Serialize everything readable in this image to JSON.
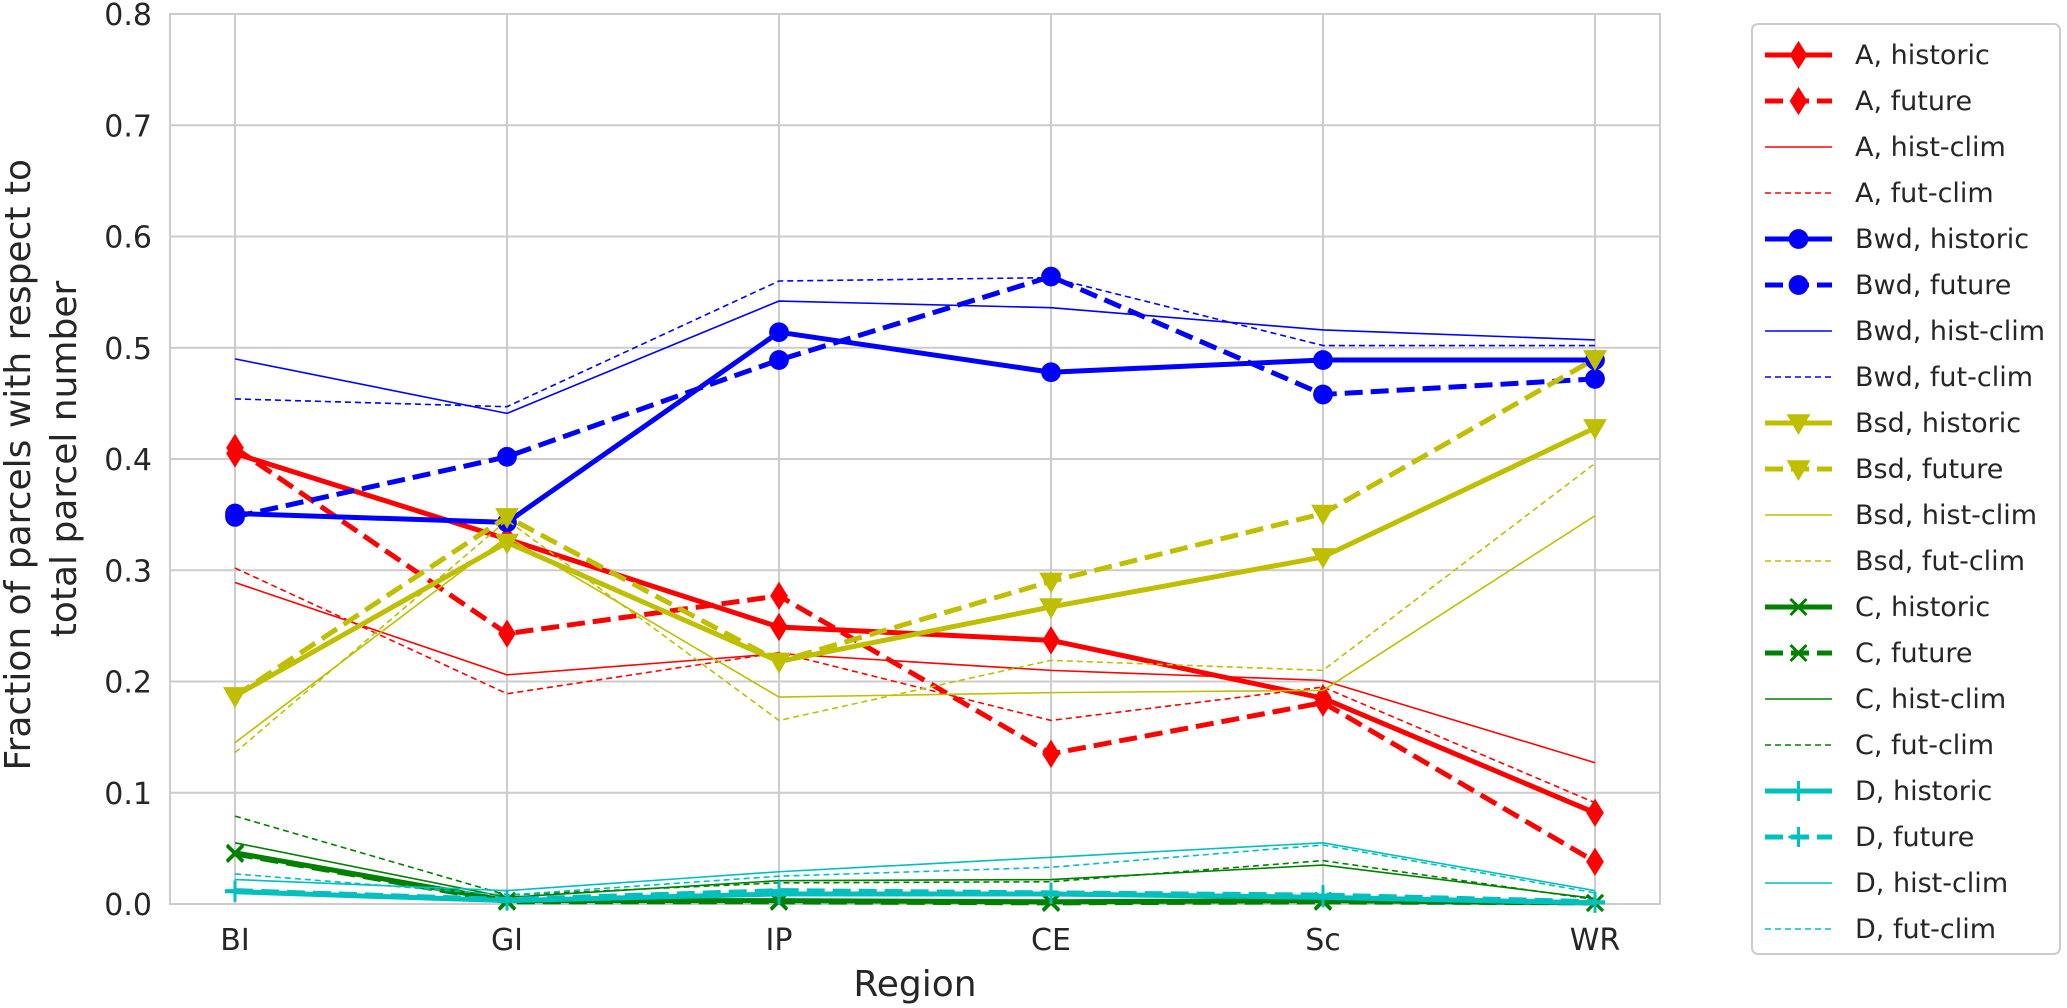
{
  "chart_data": {
    "type": "line",
    "title": "",
    "xlabel": "Region",
    "ylabel": [
      "Fraction of parcels with respect to",
      "total parcel number"
    ],
    "categories": [
      "BI",
      "GI",
      "IP",
      "CE",
      "Sc",
      "WR"
    ],
    "ylim": [
      0,
      0.8
    ],
    "yticks": [
      "0.0",
      "0.1",
      "0.2",
      "0.3",
      "0.4",
      "0.5",
      "0.6",
      "0.7",
      "0.8"
    ],
    "grid": true,
    "legend_position": "outside-right",
    "series": [
      {
        "name": "A, historic",
        "color": "#ff0000",
        "style": "solid-thick",
        "marker": "diamond",
        "values": [
          0.405,
          0.328,
          0.249,
          0.237,
          0.185,
          0.082
        ]
      },
      {
        "name": "A, future",
        "color": "#ff0000",
        "style": "dashed-thick",
        "marker": "diamond",
        "values": [
          0.41,
          0.243,
          0.277,
          0.135,
          0.181,
          0.038
        ]
      },
      {
        "name": "A, hist-clim",
        "color": "#ff0000",
        "style": "solid-thin",
        "marker": "none",
        "values": [
          0.289,
          0.206,
          0.225,
          0.21,
          0.201,
          0.127
        ]
      },
      {
        "name": "A, fut-clim",
        "color": "#ff0000",
        "style": "dashed-thin",
        "marker": "none",
        "values": [
          0.302,
          0.189,
          0.226,
          0.165,
          0.195,
          0.091
        ]
      },
      {
        "name": "Bwd, historic",
        "color": "#0000ff",
        "style": "solid-thick",
        "marker": "circle",
        "values": [
          0.351,
          0.343,
          0.514,
          0.478,
          0.489,
          0.489
        ]
      },
      {
        "name": "Bwd, future",
        "color": "#0000ff",
        "style": "dashed-thick",
        "marker": "circle",
        "values": [
          0.348,
          0.402,
          0.489,
          0.564,
          0.458,
          0.472
        ]
      },
      {
        "name": "Bwd, hist-clim",
        "color": "#0000ff",
        "style": "solid-thin",
        "marker": "none",
        "values": [
          0.49,
          0.441,
          0.542,
          0.536,
          0.516,
          0.507
        ]
      },
      {
        "name": "Bwd, fut-clim",
        "color": "#0000ff",
        "style": "dashed-thin",
        "marker": "none",
        "values": [
          0.454,
          0.447,
          0.56,
          0.563,
          0.502,
          0.502
        ]
      },
      {
        "name": "Bsd, historic",
        "color": "#bfbf00",
        "style": "solid-thick",
        "marker": "triangle-down",
        "values": [
          0.187,
          0.325,
          0.218,
          0.267,
          0.312,
          0.428
        ]
      },
      {
        "name": "Bsd, future",
        "color": "#bfbf00",
        "style": "dashed-thick",
        "marker": "triangle-down",
        "values": [
          0.187,
          0.348,
          0.218,
          0.29,
          0.351,
          0.49
        ]
      },
      {
        "name": "Bsd, hist-clim",
        "color": "#bfbf00",
        "style": "solid-thin",
        "marker": "none",
        "values": [
          0.145,
          0.33,
          0.186,
          0.19,
          0.192,
          0.349
        ]
      },
      {
        "name": "Bsd, fut-clim",
        "color": "#bfbf00",
        "style": "dashed-thin",
        "marker": "none",
        "values": [
          0.136,
          0.345,
          0.165,
          0.219,
          0.21,
          0.396
        ]
      },
      {
        "name": "C, historic",
        "color": "#008000",
        "style": "solid-thick",
        "marker": "x",
        "values": [
          0.046,
          0.003,
          0.003,
          0.002,
          0.003,
          0.001
        ]
      },
      {
        "name": "C, future",
        "color": "#008000",
        "style": "dashed-thick",
        "marker": "x",
        "values": [
          0.045,
          0.002,
          0.002,
          0.001,
          0.002,
          0.001
        ]
      },
      {
        "name": "C, hist-clim",
        "color": "#008000",
        "style": "solid-thin",
        "marker": "none",
        "values": [
          0.055,
          0.006,
          0.021,
          0.022,
          0.035,
          0.005
        ]
      },
      {
        "name": "C, fut-clim",
        "color": "#008000",
        "style": "dashed-thin",
        "marker": "none",
        "values": [
          0.079,
          0.008,
          0.019,
          0.02,
          0.039,
          0.004
        ]
      },
      {
        "name": "D, historic",
        "color": "#00bfbf",
        "style": "solid-thick",
        "marker": "plus",
        "values": [
          0.011,
          0.003,
          0.009,
          0.009,
          0.006,
          0.001
        ]
      },
      {
        "name": "D, future",
        "color": "#00bfbf",
        "style": "dashed-thick",
        "marker": "plus",
        "values": [
          0.012,
          0.004,
          0.012,
          0.01,
          0.008,
          0.002
        ]
      },
      {
        "name": "D, hist-clim",
        "color": "#00bfbf",
        "style": "solid-thin",
        "marker": "none",
        "values": [
          0.022,
          0.012,
          0.029,
          0.042,
          0.055,
          0.012
        ]
      },
      {
        "name": "D, fut-clim",
        "color": "#00bfbf",
        "style": "dashed-thin",
        "marker": "none",
        "values": [
          0.027,
          0.008,
          0.025,
          0.033,
          0.053,
          0.01
        ]
      }
    ]
  }
}
